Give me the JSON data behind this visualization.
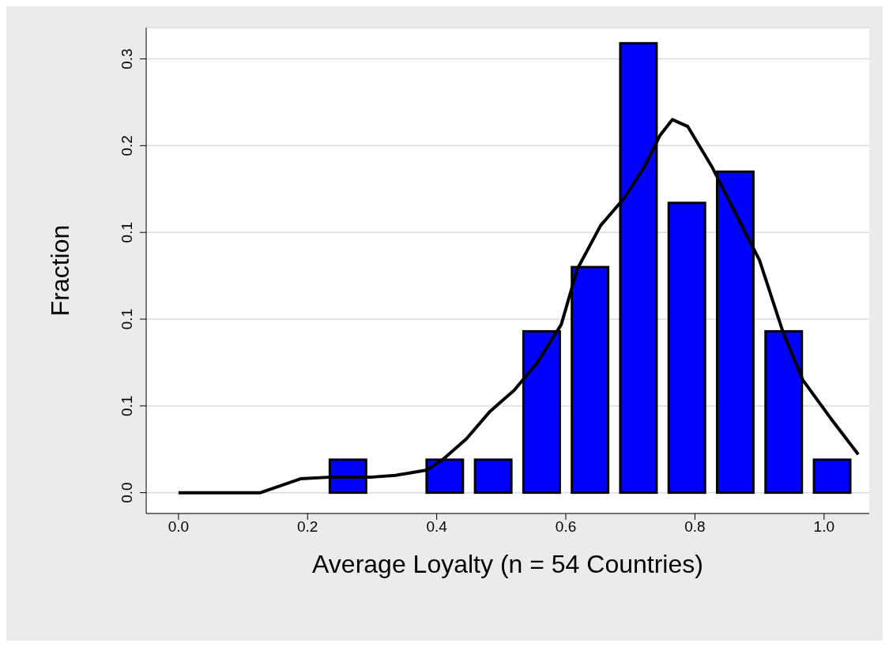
{
  "chart_data": {
    "type": "histogram",
    "xlabel": "Average Loyalty (n = 54 Countries)",
    "ylabel": "Fraction",
    "bins": [
      0.225,
      0.3,
      0.375,
      0.45,
      0.525,
      0.6,
      0.675,
      0.75,
      0.825,
      0.9,
      0.975,
      1.05
    ],
    "values": [
      0.019,
      0,
      0.019,
      0.019,
      0.093,
      0.13,
      0.259,
      0.167,
      0.185,
      0.093,
      0.019
    ],
    "color": "#0000ff",
    "series": [
      {
        "type": "line",
        "color": "#000000",
        "x": [
          0,
          0.127,
          0.189,
          0.238,
          0.3,
          0.336,
          0.385,
          0.409,
          0.446,
          0.483,
          0.52,
          0.556,
          0.593,
          0.618,
          0.654,
          0.691,
          0.722,
          0.746,
          0.765,
          0.789,
          0.826,
          0.863,
          0.9,
          0.936,
          0.967,
          1.01,
          1.053
        ],
        "values": [
          0,
          0,
          0.008,
          0.009,
          0.009,
          0.01,
          0.013,
          0.019,
          0.031,
          0.047,
          0.059,
          0.075,
          0.097,
          0.129,
          0.154,
          0.17,
          0.188,
          0.206,
          0.215,
          0.211,
          0.188,
          0.161,
          0.134,
          0.093,
          0.065,
          0.043,
          0.022
        ]
      }
    ],
    "xlim": [
      -0.05,
      1.07
    ],
    "xticks": [
      {
        "value": 0,
        "label": "0.0"
      },
      {
        "value": 0.2,
        "label": "0.2"
      },
      {
        "value": 0.4,
        "label": "0.4"
      },
      {
        "value": 0.6,
        "label": "0.6"
      },
      {
        "value": 0.8,
        "label": "0.8"
      },
      {
        "value": 1,
        "label": "1.0"
      }
    ],
    "ylim": [
      -0.012,
      0.268
    ],
    "yticks": [
      {
        "value": 0,
        "label": "0.0"
      },
      {
        "value": 0.05,
        "label": "0.1"
      },
      {
        "value": 0.1,
        "label": "0.1"
      },
      {
        "value": 0.15,
        "label": "0.1"
      },
      {
        "value": 0.2,
        "label": "0.2"
      },
      {
        "value": 0.25,
        "label": "0.3"
      }
    ],
    "grid": "y"
  }
}
